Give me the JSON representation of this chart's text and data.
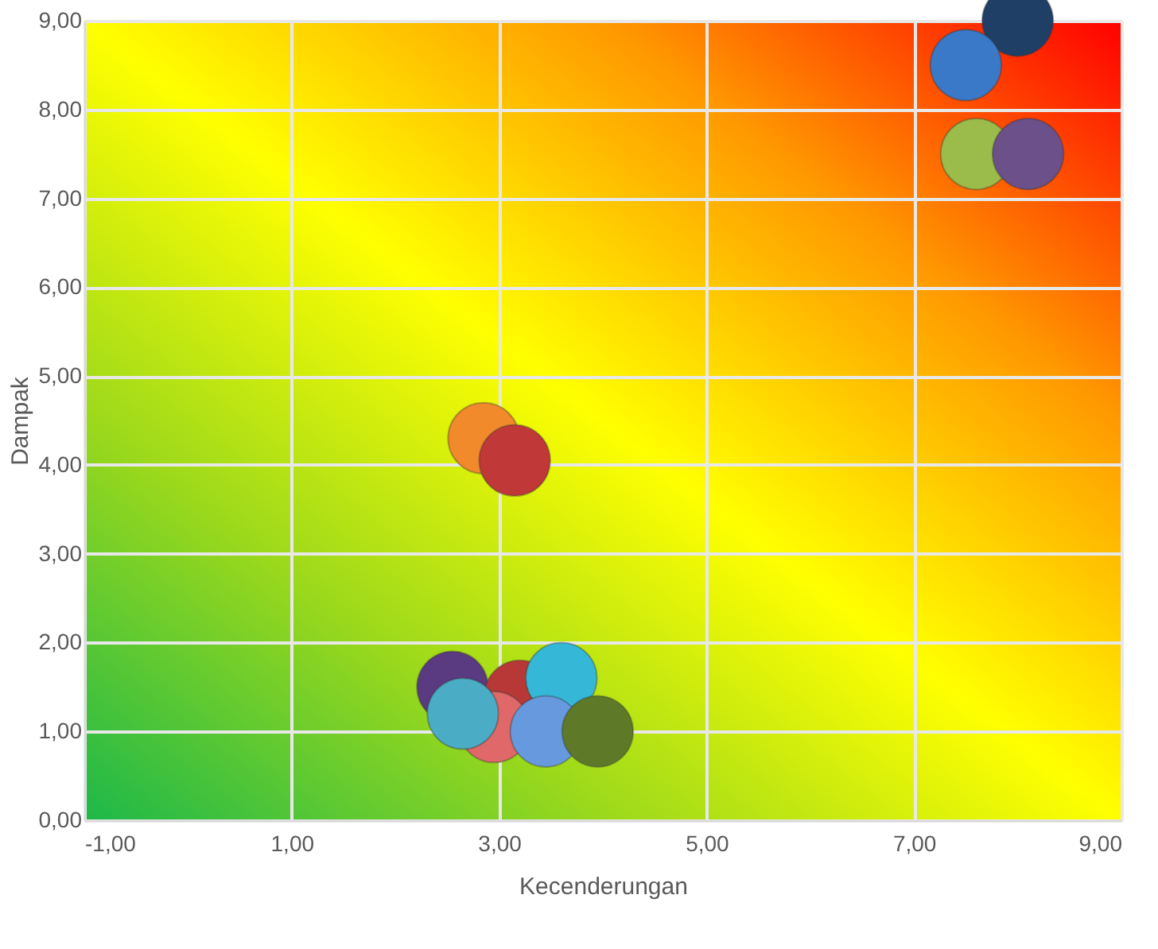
{
  "chart_data": {
    "type": "bubble",
    "xlabel": "Kecenderungan",
    "ylabel": "Dampak",
    "x": [
      8.0,
      7.5,
      7.6,
      8.1,
      2.85,
      3.15,
      2.55,
      3.2,
      3.6,
      2.95,
      3.45,
      3.95,
      2.65
    ],
    "values": [
      9.0,
      8.5,
      7.5,
      7.5,
      4.3,
      4.05,
      1.5,
      1.4,
      1.6,
      1.05,
      1.0,
      1.0,
      1.2
    ],
    "sizes": [
      1,
      1,
      1,
      1,
      1,
      1,
      1,
      1,
      1,
      1,
      1,
      1,
      1
    ],
    "colors": [
      "#1f3f66",
      "#3a78c8",
      "#9bbb4a",
      "#6b5089",
      "#f08a2a",
      "#c03838",
      "#5a3a80",
      "#b83838",
      "#35b8d8",
      "#e06868",
      "#6699dd",
      "#5e7a28",
      "#4bacc6"
    ],
    "xlim": [
      -1,
      9
    ],
    "ylim": [
      0,
      9
    ],
    "xticks": [
      {
        "value": -1,
        "label": "-1,00"
      },
      {
        "value": 1,
        "label": "1,00"
      },
      {
        "value": 3,
        "label": "3,00"
      },
      {
        "value": 5,
        "label": "5,00"
      },
      {
        "value": 7,
        "label": "7,00"
      },
      {
        "value": 9,
        "label": "9,00"
      }
    ],
    "yticks": [
      {
        "value": 0,
        "label": "0,00"
      },
      {
        "value": 1,
        "label": "1,00"
      },
      {
        "value": 2,
        "label": "2,00"
      },
      {
        "value": 3,
        "label": "3,00"
      },
      {
        "value": 4,
        "label": "4,00"
      },
      {
        "value": 5,
        "label": "5,00"
      },
      {
        "value": 6,
        "label": "6,00"
      },
      {
        "value": 7,
        "label": "7,00"
      },
      {
        "value": 8,
        "label": "8,00"
      },
      {
        "value": 9,
        "label": "9,00"
      }
    ],
    "grid": true
  }
}
